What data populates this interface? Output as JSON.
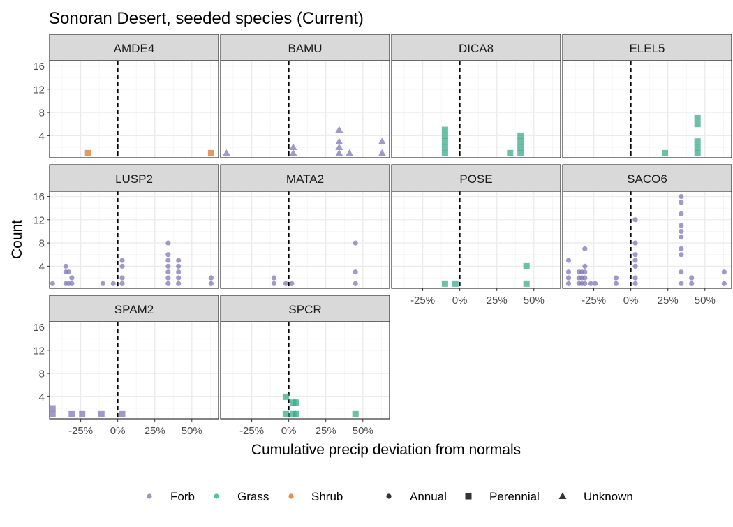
{
  "chart_data": {
    "type": "scatter",
    "title": "Sonoran Desert, seeded species (Current)",
    "xlabel": "Cumulative precip deviation from normals",
    "ylabel": "Count",
    "x_tick_labels": [
      "-25%",
      "0%",
      "25%",
      "50%"
    ],
    "x_ticks": [
      -0.25,
      0,
      0.25,
      0.5
    ],
    "x_range": [
      -0.46,
      0.68
    ],
    "y_tick_labels": [
      "4",
      "8",
      "12",
      "16"
    ],
    "y_ticks": [
      4,
      8,
      12,
      16
    ],
    "y_range": [
      0.2,
      16.9
    ],
    "reference_line": {
      "x": 0,
      "style": "dashed"
    },
    "grid": true,
    "legend_position": "bottom",
    "colors": {
      "Forb": "#7f79b7",
      "Grass": "#3aab88",
      "Shrub": "#d97a2d"
    },
    "legend": {
      "color_items": [
        {
          "label": "Forb",
          "color": "#9d98c8"
        },
        {
          "label": "Grass",
          "color": "#57c09a"
        },
        {
          "label": "Shrub",
          "color": "#e08e52"
        }
      ],
      "shape_items": [
        {
          "label": "Annual",
          "shape": "circle"
        },
        {
          "label": "Perennial",
          "shape": "square"
        },
        {
          "label": "Unknown",
          "shape": "triangle"
        }
      ]
    },
    "panels": [
      {
        "label": "AMDE4",
        "points": [
          {
            "x": -0.2,
            "y": 1,
            "type": "Shrub",
            "duration": "Perennial"
          },
          {
            "x": 0.63,
            "y": 1,
            "type": "Shrub",
            "duration": "Perennial"
          }
        ]
      },
      {
        "label": "BAMU",
        "points": [
          {
            "x": -0.42,
            "y": 1,
            "type": "Forb",
            "duration": "Unknown"
          },
          {
            "x": 0.03,
            "y": 1,
            "type": "Forb",
            "duration": "Unknown"
          },
          {
            "x": 0.03,
            "y": 2,
            "type": "Forb",
            "duration": "Unknown"
          },
          {
            "x": 0.34,
            "y": 1,
            "type": "Forb",
            "duration": "Unknown"
          },
          {
            "x": 0.34,
            "y": 2,
            "type": "Forb",
            "duration": "Unknown"
          },
          {
            "x": 0.34,
            "y": 3,
            "type": "Forb",
            "duration": "Unknown"
          },
          {
            "x": 0.34,
            "y": 5,
            "type": "Forb",
            "duration": "Unknown"
          },
          {
            "x": 0.41,
            "y": 1,
            "type": "Forb",
            "duration": "Unknown"
          },
          {
            "x": 0.63,
            "y": 1,
            "type": "Forb",
            "duration": "Unknown"
          },
          {
            "x": 0.63,
            "y": 3,
            "type": "Forb",
            "duration": "Unknown"
          }
        ]
      },
      {
        "label": "DICA8",
        "points": [
          {
            "x": -0.1,
            "y": 1,
            "type": "Grass",
            "duration": "Perennial"
          },
          {
            "x": -0.1,
            "y": 2,
            "type": "Grass",
            "duration": "Perennial"
          },
          {
            "x": -0.1,
            "y": 3,
            "type": "Grass",
            "duration": "Perennial"
          },
          {
            "x": -0.1,
            "y": 4,
            "type": "Grass",
            "duration": "Perennial"
          },
          {
            "x": -0.1,
            "y": 5,
            "type": "Grass",
            "duration": "Perennial"
          },
          {
            "x": 0.34,
            "y": 1,
            "type": "Grass",
            "duration": "Perennial"
          },
          {
            "x": 0.41,
            "y": 1,
            "type": "Grass",
            "duration": "Perennial"
          },
          {
            "x": 0.41,
            "y": 2,
            "type": "Grass",
            "duration": "Perennial"
          },
          {
            "x": 0.41,
            "y": 3,
            "type": "Grass",
            "duration": "Perennial"
          },
          {
            "x": 0.41,
            "y": 4,
            "type": "Grass",
            "duration": "Perennial"
          }
        ]
      },
      {
        "label": "ELEL5",
        "points": [
          {
            "x": 0.23,
            "y": 1,
            "type": "Grass",
            "duration": "Perennial"
          },
          {
            "x": 0.45,
            "y": 1,
            "type": "Grass",
            "duration": "Perennial"
          },
          {
            "x": 0.45,
            "y": 2,
            "type": "Grass",
            "duration": "Perennial"
          },
          {
            "x": 0.45,
            "y": 3,
            "type": "Grass",
            "duration": "Perennial"
          },
          {
            "x": 0.45,
            "y": 6,
            "type": "Grass",
            "duration": "Perennial"
          },
          {
            "x": 0.45,
            "y": 7,
            "type": "Grass",
            "duration": "Perennial"
          }
        ]
      },
      {
        "label": "LUSP2",
        "points": [
          {
            "x": -0.44,
            "y": 1,
            "type": "Forb",
            "duration": "Annual"
          },
          {
            "x": -0.35,
            "y": 1,
            "type": "Forb",
            "duration": "Annual"
          },
          {
            "x": -0.35,
            "y": 3,
            "type": "Forb",
            "duration": "Annual"
          },
          {
            "x": -0.35,
            "y": 4,
            "type": "Forb",
            "duration": "Annual"
          },
          {
            "x": -0.33,
            "y": 1,
            "type": "Forb",
            "duration": "Annual"
          },
          {
            "x": -0.33,
            "y": 3,
            "type": "Forb",
            "duration": "Annual"
          },
          {
            "x": -0.31,
            "y": 1,
            "type": "Forb",
            "duration": "Annual"
          },
          {
            "x": -0.31,
            "y": 2,
            "type": "Forb",
            "duration": "Annual"
          },
          {
            "x": -0.1,
            "y": 1,
            "type": "Forb",
            "duration": "Annual"
          },
          {
            "x": -0.03,
            "y": 1,
            "type": "Forb",
            "duration": "Annual"
          },
          {
            "x": 0.03,
            "y": 1,
            "type": "Forb",
            "duration": "Annual"
          },
          {
            "x": 0.03,
            "y": 2,
            "type": "Forb",
            "duration": "Annual"
          },
          {
            "x": 0.03,
            "y": 4,
            "type": "Forb",
            "duration": "Annual"
          },
          {
            "x": 0.03,
            "y": 5,
            "type": "Forb",
            "duration": "Annual"
          },
          {
            "x": 0.34,
            "y": 1,
            "type": "Forb",
            "duration": "Annual"
          },
          {
            "x": 0.34,
            "y": 2,
            "type": "Forb",
            "duration": "Annual"
          },
          {
            "x": 0.34,
            "y": 3,
            "type": "Forb",
            "duration": "Annual"
          },
          {
            "x": 0.34,
            "y": 4,
            "type": "Forb",
            "duration": "Annual"
          },
          {
            "x": 0.34,
            "y": 5,
            "type": "Forb",
            "duration": "Annual"
          },
          {
            "x": 0.34,
            "y": 6,
            "type": "Forb",
            "duration": "Annual"
          },
          {
            "x": 0.34,
            "y": 8,
            "type": "Forb",
            "duration": "Annual"
          },
          {
            "x": 0.41,
            "y": 1,
            "type": "Forb",
            "duration": "Annual"
          },
          {
            "x": 0.41,
            "y": 2,
            "type": "Forb",
            "duration": "Annual"
          },
          {
            "x": 0.41,
            "y": 3,
            "type": "Forb",
            "duration": "Annual"
          },
          {
            "x": 0.41,
            "y": 4,
            "type": "Forb",
            "duration": "Annual"
          },
          {
            "x": 0.41,
            "y": 5,
            "type": "Forb",
            "duration": "Annual"
          },
          {
            "x": 0.63,
            "y": 1,
            "type": "Forb",
            "duration": "Annual"
          },
          {
            "x": 0.63,
            "y": 2,
            "type": "Forb",
            "duration": "Annual"
          }
        ]
      },
      {
        "label": "MATA2",
        "points": [
          {
            "x": -0.1,
            "y": 1,
            "type": "Forb",
            "duration": "Annual"
          },
          {
            "x": -0.1,
            "y": 2,
            "type": "Forb",
            "duration": "Annual"
          },
          {
            "x": -0.02,
            "y": 1,
            "type": "Forb",
            "duration": "Annual"
          },
          {
            "x": 0.02,
            "y": 1,
            "type": "Forb",
            "duration": "Annual"
          },
          {
            "x": 0.45,
            "y": 1,
            "type": "Forb",
            "duration": "Annual"
          },
          {
            "x": 0.45,
            "y": 3,
            "type": "Forb",
            "duration": "Annual"
          },
          {
            "x": 0.45,
            "y": 8,
            "type": "Forb",
            "duration": "Annual"
          }
        ]
      },
      {
        "label": "POSE",
        "points": [
          {
            "x": -0.1,
            "y": 1,
            "type": "Grass",
            "duration": "Perennial"
          },
          {
            "x": -0.03,
            "y": 1,
            "type": "Grass",
            "duration": "Perennial"
          },
          {
            "x": 0.45,
            "y": 1,
            "type": "Grass",
            "duration": "Perennial"
          },
          {
            "x": 0.45,
            "y": 4,
            "type": "Grass",
            "duration": "Perennial"
          }
        ]
      },
      {
        "label": "SACO6",
        "points": [
          {
            "x": -0.42,
            "y": 1,
            "type": "Forb",
            "duration": "Annual"
          },
          {
            "x": -0.42,
            "y": 2,
            "type": "Forb",
            "duration": "Annual"
          },
          {
            "x": -0.42,
            "y": 3,
            "type": "Forb",
            "duration": "Annual"
          },
          {
            "x": -0.42,
            "y": 5,
            "type": "Forb",
            "duration": "Annual"
          },
          {
            "x": -0.35,
            "y": 1,
            "type": "Forb",
            "duration": "Annual"
          },
          {
            "x": -0.35,
            "y": 2,
            "type": "Forb",
            "duration": "Annual"
          },
          {
            "x": -0.35,
            "y": 3,
            "type": "Forb",
            "duration": "Annual"
          },
          {
            "x": -0.33,
            "y": 1,
            "type": "Forb",
            "duration": "Annual"
          },
          {
            "x": -0.33,
            "y": 2,
            "type": "Forb",
            "duration": "Annual"
          },
          {
            "x": -0.33,
            "y": 3,
            "type": "Forb",
            "duration": "Annual"
          },
          {
            "x": -0.31,
            "y": 1,
            "type": "Forb",
            "duration": "Annual"
          },
          {
            "x": -0.31,
            "y": 2,
            "type": "Forb",
            "duration": "Annual"
          },
          {
            "x": -0.31,
            "y": 3,
            "type": "Forb",
            "duration": "Annual"
          },
          {
            "x": -0.31,
            "y": 4,
            "type": "Forb",
            "duration": "Annual"
          },
          {
            "x": -0.31,
            "y": 7,
            "type": "Forb",
            "duration": "Annual"
          },
          {
            "x": -0.27,
            "y": 1,
            "type": "Forb",
            "duration": "Annual"
          },
          {
            "x": -0.24,
            "y": 1,
            "type": "Forb",
            "duration": "Annual"
          },
          {
            "x": -0.1,
            "y": 1,
            "type": "Forb",
            "duration": "Annual"
          },
          {
            "x": -0.1,
            "y": 2,
            "type": "Forb",
            "duration": "Annual"
          },
          {
            "x": 0.03,
            "y": 1,
            "type": "Forb",
            "duration": "Annual"
          },
          {
            "x": 0.03,
            "y": 2,
            "type": "Forb",
            "duration": "Annual"
          },
          {
            "x": 0.03,
            "y": 4,
            "type": "Forb",
            "duration": "Annual"
          },
          {
            "x": 0.03,
            "y": 5,
            "type": "Forb",
            "duration": "Annual"
          },
          {
            "x": 0.03,
            "y": 6,
            "type": "Forb",
            "duration": "Annual"
          },
          {
            "x": 0.03,
            "y": 8,
            "type": "Forb",
            "duration": "Annual"
          },
          {
            "x": 0.03,
            "y": 12,
            "type": "Forb",
            "duration": "Annual"
          },
          {
            "x": 0.34,
            "y": 1,
            "type": "Forb",
            "duration": "Annual"
          },
          {
            "x": 0.34,
            "y": 3,
            "type": "Forb",
            "duration": "Annual"
          },
          {
            "x": 0.34,
            "y": 6,
            "type": "Forb",
            "duration": "Annual"
          },
          {
            "x": 0.34,
            "y": 7,
            "type": "Forb",
            "duration": "Annual"
          },
          {
            "x": 0.34,
            "y": 9,
            "type": "Forb",
            "duration": "Annual"
          },
          {
            "x": 0.34,
            "y": 10,
            "type": "Forb",
            "duration": "Annual"
          },
          {
            "x": 0.34,
            "y": 11,
            "type": "Forb",
            "duration": "Annual"
          },
          {
            "x": 0.34,
            "y": 13,
            "type": "Forb",
            "duration": "Annual"
          },
          {
            "x": 0.34,
            "y": 15,
            "type": "Forb",
            "duration": "Annual"
          },
          {
            "x": 0.34,
            "y": 16,
            "type": "Forb",
            "duration": "Annual"
          },
          {
            "x": 0.41,
            "y": 1,
            "type": "Forb",
            "duration": "Annual"
          },
          {
            "x": 0.41,
            "y": 2,
            "type": "Forb",
            "duration": "Annual"
          },
          {
            "x": 0.63,
            "y": 1,
            "type": "Forb",
            "duration": "Annual"
          },
          {
            "x": 0.63,
            "y": 3,
            "type": "Forb",
            "duration": "Annual"
          }
        ]
      },
      {
        "label": "SPAM2",
        "points": [
          {
            "x": -0.44,
            "y": 1,
            "type": "Forb",
            "duration": "Perennial"
          },
          {
            "x": -0.44,
            "y": 2,
            "type": "Forb",
            "duration": "Perennial"
          },
          {
            "x": -0.31,
            "y": 1,
            "type": "Forb",
            "duration": "Perennial"
          },
          {
            "x": -0.24,
            "y": 1,
            "type": "Forb",
            "duration": "Perennial"
          },
          {
            "x": -0.11,
            "y": 1,
            "type": "Forb",
            "duration": "Perennial"
          },
          {
            "x": 0.03,
            "y": 1,
            "type": "Forb",
            "duration": "Perennial"
          }
        ]
      },
      {
        "label": "SPCR",
        "points": [
          {
            "x": -0.02,
            "y": 1,
            "type": "Grass",
            "duration": "Perennial"
          },
          {
            "x": -0.02,
            "y": 4,
            "type": "Grass",
            "duration": "Perennial"
          },
          {
            "x": 0.03,
            "y": 1,
            "type": "Grass",
            "duration": "Perennial"
          },
          {
            "x": 0.03,
            "y": 3,
            "type": "Grass",
            "duration": "Perennial"
          },
          {
            "x": 0.05,
            "y": 1,
            "type": "Grass",
            "duration": "Perennial"
          },
          {
            "x": 0.05,
            "y": 3,
            "type": "Grass",
            "duration": "Perennial"
          },
          {
            "x": 0.45,
            "y": 1,
            "type": "Grass",
            "duration": "Perennial"
          }
        ]
      }
    ]
  }
}
